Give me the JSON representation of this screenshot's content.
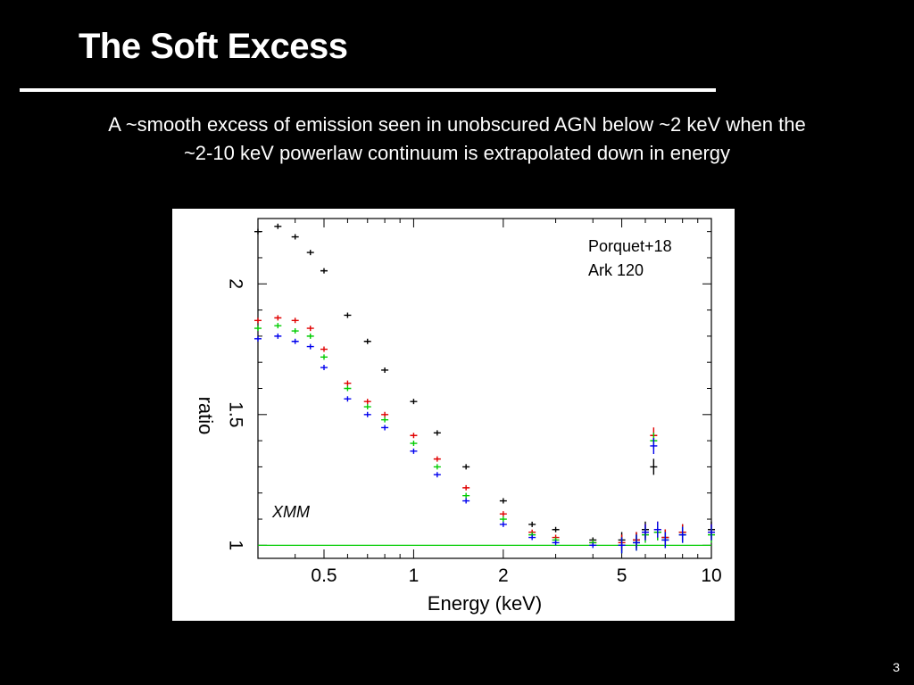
{
  "slide": {
    "title": "The Soft Excess",
    "subtitle_line1": "A ~smooth excess of emission seen in unobscured AGN below ~2 keV when the",
    "subtitle_line2": "~2-10 keV powerlaw continuum is extrapolated down in energy",
    "page_number": "3"
  },
  "chart_data": {
    "type": "scatter",
    "xlabel": "Energy (keV)",
    "ylabel": "ratio",
    "x_scale": "log",
    "xlim": [
      0.3,
      10
    ],
    "ylim": [
      0.95,
      2.25
    ],
    "x_ticks": [
      0.5,
      1,
      2,
      5,
      10
    ],
    "x_tick_labels": [
      "0.5",
      "1",
      "2",
      "5",
      "10"
    ],
    "y_ticks": [
      1,
      1.5,
      2
    ],
    "y_tick_labels": [
      "1",
      "1.5",
      "2"
    ],
    "reference_line": {
      "y": 1,
      "color": "#00cc00"
    },
    "annotations": {
      "reference": "Porquet+18",
      "source": "Ark 120",
      "instrument": "XMM"
    },
    "series": [
      {
        "color": "#000000",
        "x": [
          0.3,
          0.35,
          0.4,
          0.45,
          0.5,
          0.6,
          0.7,
          0.8,
          1.0,
          1.2,
          1.5,
          2.0,
          2.5,
          3.0,
          4.0,
          5.0,
          5.6,
          6.0,
          6.4,
          6.6,
          7.0,
          8.0,
          10.0
        ],
        "y": [
          2.2,
          2.22,
          2.18,
          2.12,
          2.05,
          1.88,
          1.78,
          1.67,
          1.55,
          1.43,
          1.3,
          1.17,
          1.08,
          1.06,
          1.02,
          1.02,
          1.02,
          1.06,
          1.3,
          1.05,
          1.03,
          1.05,
          1.06
        ]
      },
      {
        "color": "#e00000",
        "x": [
          0.3,
          0.35,
          0.4,
          0.45,
          0.5,
          0.6,
          0.7,
          0.8,
          1.0,
          1.2,
          1.5,
          2.0,
          2.5,
          3.0,
          4.0,
          5.0,
          5.6,
          6.0,
          6.4,
          6.6,
          7.0,
          8.0,
          10.0
        ],
        "y": [
          1.86,
          1.87,
          1.86,
          1.83,
          1.75,
          1.62,
          1.55,
          1.5,
          1.42,
          1.33,
          1.22,
          1.12,
          1.05,
          1.03,
          1.01,
          1.01,
          1.02,
          1.05,
          1.42,
          1.06,
          1.03,
          1.05,
          1.05
        ]
      },
      {
        "color": "#00cc00",
        "x": [
          0.3,
          0.35,
          0.4,
          0.45,
          0.5,
          0.6,
          0.7,
          0.8,
          1.0,
          1.2,
          1.5,
          2.0,
          2.5,
          3.0,
          4.0,
          5.0,
          5.6,
          6.0,
          6.4,
          6.6,
          7.0,
          8.0,
          10.0
        ],
        "y": [
          1.83,
          1.84,
          1.82,
          1.8,
          1.72,
          1.6,
          1.53,
          1.48,
          1.39,
          1.3,
          1.19,
          1.1,
          1.04,
          1.02,
          1.01,
          1.0,
          1.01,
          1.04,
          1.4,
          1.05,
          1.02,
          1.04,
          1.04
        ]
      },
      {
        "color": "#0000ee",
        "x": [
          0.3,
          0.35,
          0.4,
          0.45,
          0.5,
          0.6,
          0.7,
          0.8,
          1.0,
          1.2,
          1.5,
          2.0,
          2.5,
          3.0,
          4.0,
          5.0,
          5.6,
          6.0,
          6.4,
          6.6,
          7.0,
          8.0,
          10.0
        ],
        "y": [
          1.79,
          1.8,
          1.78,
          1.76,
          1.68,
          1.56,
          1.5,
          1.45,
          1.36,
          1.27,
          1.17,
          1.08,
          1.03,
          1.01,
          1.0,
          1.0,
          1.01,
          1.05,
          1.38,
          1.06,
          1.02,
          1.04,
          1.05
        ]
      }
    ]
  }
}
